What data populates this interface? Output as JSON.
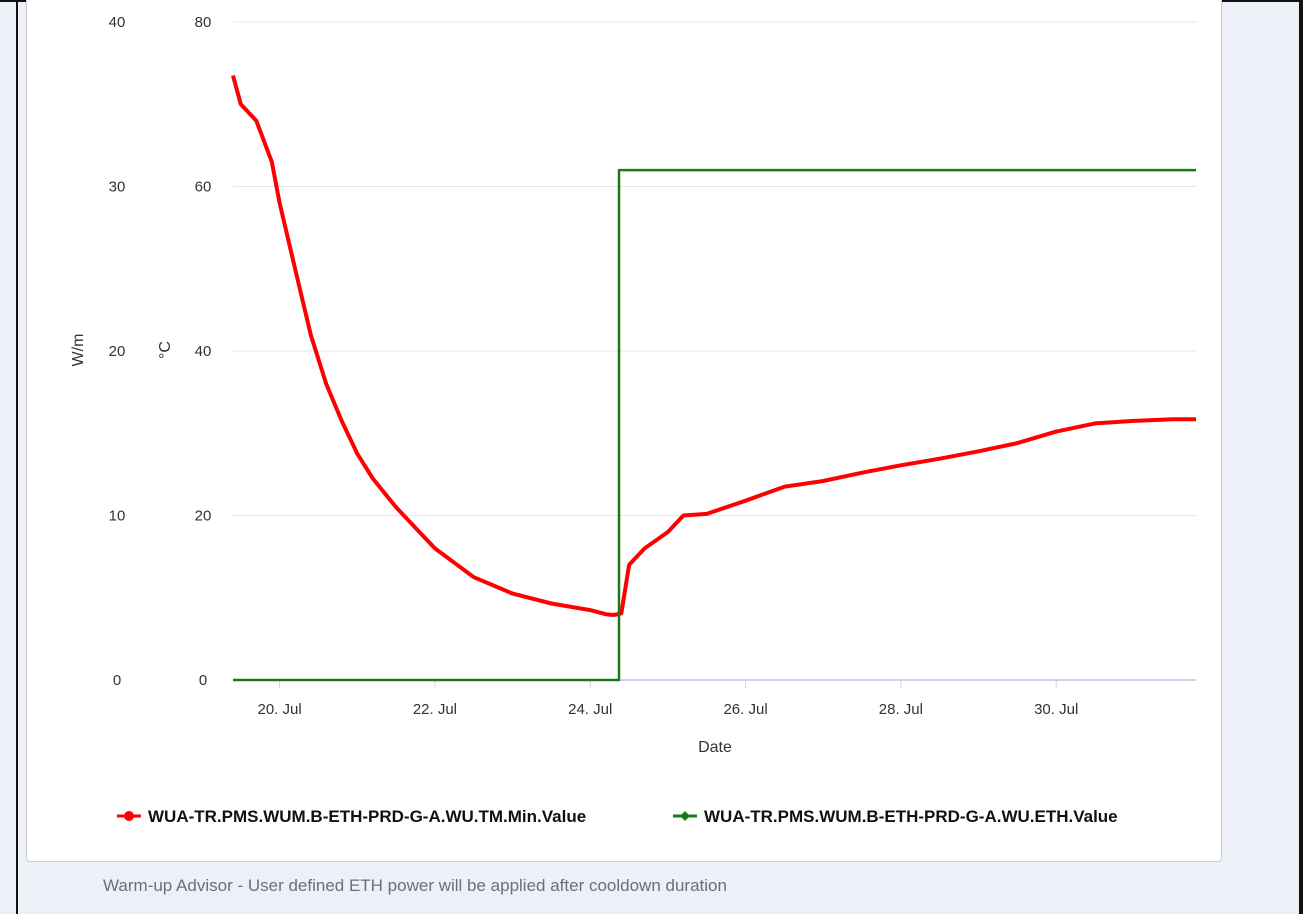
{
  "caption": "Warm-up Advisor - User defined ETH power will be applied after cooldown duration",
  "chart_data": {
    "type": "line",
    "xlabel": "Date",
    "x_ticks": [
      "20. Jul",
      "22. Jul",
      "24. Jul",
      "26. Jul",
      "28. Jul",
      "30. Jul"
    ],
    "x_tick_days": [
      20,
      22,
      24,
      26,
      28,
      30
    ],
    "xlim": [
      "19. Jul 09:30",
      "31. Jul 19:00"
    ],
    "y_axes": [
      {
        "label": "W/m",
        "ticks": [
          "0",
          "10",
          "20",
          "30",
          "40"
        ],
        "ylim": [
          0,
          40
        ]
      },
      {
        "label": "°C",
        "ticks": [
          "0",
          "20",
          "40",
          "60",
          "80"
        ],
        "ylim": [
          0,
          80
        ]
      }
    ],
    "grid": true,
    "legend_position": "bottom",
    "series": [
      {
        "name": "WUA-TR.PMS.WUM.B-ETH-PRD-G-A.WU.TM.Min.Value",
        "axis": "°C",
        "color": "#ff0000",
        "x_days": [
          19.4,
          19.5,
          19.7,
          19.9,
          20.0,
          20.2,
          20.4,
          20.6,
          20.8,
          21.0,
          21.2,
          21.5,
          21.8,
          22.0,
          22.5,
          23.0,
          23.5,
          24.0,
          24.2,
          24.3,
          24.4,
          24.5,
          24.7,
          25.0,
          25.2,
          25.5,
          26.0,
          26.5,
          27.0,
          27.5,
          28.0,
          28.5,
          29.0,
          29.5,
          30.0,
          30.5,
          31.0,
          31.5,
          31.8
        ],
        "values": [
          73.5,
          70,
          68,
          63,
          58,
          50,
          42,
          36,
          31.5,
          27.5,
          24.5,
          21,
          18,
          16,
          12.5,
          10.5,
          9.3,
          8.5,
          8,
          7.9,
          8.1,
          14,
          16,
          18,
          20,
          20.2,
          21.8,
          23.5,
          24.2,
          25.2,
          26.1,
          26.9,
          27.8,
          28.8,
          30.2,
          31.2,
          31.5,
          31.7,
          31.7
        ]
      },
      {
        "name": "WUA-TR.PMS.WUM.B-ETH-PRD-G-A.WU.ETH.Value",
        "axis": "W/m",
        "color": "#1a7a1a",
        "x_days": [
          19.4,
          24.37,
          24.37,
          31.8
        ],
        "values": [
          0,
          0,
          31,
          31
        ]
      }
    ]
  }
}
